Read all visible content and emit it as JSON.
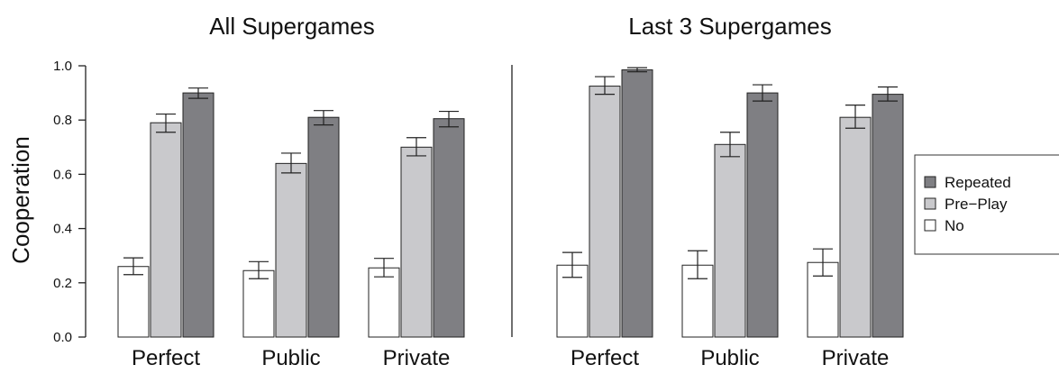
{
  "chart_data": {
    "type": "bar",
    "ylabel": "Cooperation",
    "ylim": [
      0,
      1
    ],
    "yticks": [
      "0.0",
      "0.2",
      "0.4",
      "0.6",
      "0.8",
      "1.0"
    ],
    "grid": false,
    "legend": {
      "placement": "right",
      "entries": [
        {
          "name": "Repeated",
          "color": "#7f7f83"
        },
        {
          "name": "Pre−Play",
          "color": "#c9c9cc"
        },
        {
          "name": "No",
          "color": "#ffffff"
        }
      ]
    },
    "panels": [
      {
        "title": "All Supergames",
        "categories": [
          "Perfect",
          "Public",
          "Private"
        ],
        "series": [
          {
            "name": "No",
            "values": [
              0.26,
              0.245,
              0.255
            ],
            "err_low": [
              0.23,
              0.215,
              0.222
            ],
            "err_high": [
              0.292,
              0.278,
              0.29
            ]
          },
          {
            "name": "Pre−Play",
            "values": [
              0.79,
              0.64,
              0.7
            ],
            "err_low": [
              0.755,
              0.605,
              0.668
            ],
            "err_high": [
              0.822,
              0.678,
              0.735
            ]
          },
          {
            "name": "Repeated",
            "values": [
              0.9,
              0.81,
              0.805
            ],
            "err_low": [
              0.88,
              0.782,
              0.775
            ],
            "err_high": [
              0.918,
              0.835,
              0.832
            ]
          }
        ]
      },
      {
        "title": "Last 3 Supergames",
        "categories": [
          "Perfect",
          "Public",
          "Private"
        ],
        "series": [
          {
            "name": "No",
            "values": [
              0.265,
              0.265,
              0.275
            ],
            "err_low": [
              0.22,
              0.215,
              0.225
            ],
            "err_high": [
              0.312,
              0.318,
              0.325
            ]
          },
          {
            "name": "Pre−Play",
            "values": [
              0.925,
              0.71,
              0.81
            ],
            "err_low": [
              0.895,
              0.665,
              0.77
            ],
            "err_high": [
              0.96,
              0.755,
              0.855
            ]
          },
          {
            "name": "Repeated",
            "values": [
              0.985,
              0.9,
              0.895
            ],
            "err_low": [
              0.978,
              0.87,
              0.87
            ],
            "err_high": [
              0.993,
              0.93,
              0.922
            ]
          }
        ]
      }
    ]
  }
}
